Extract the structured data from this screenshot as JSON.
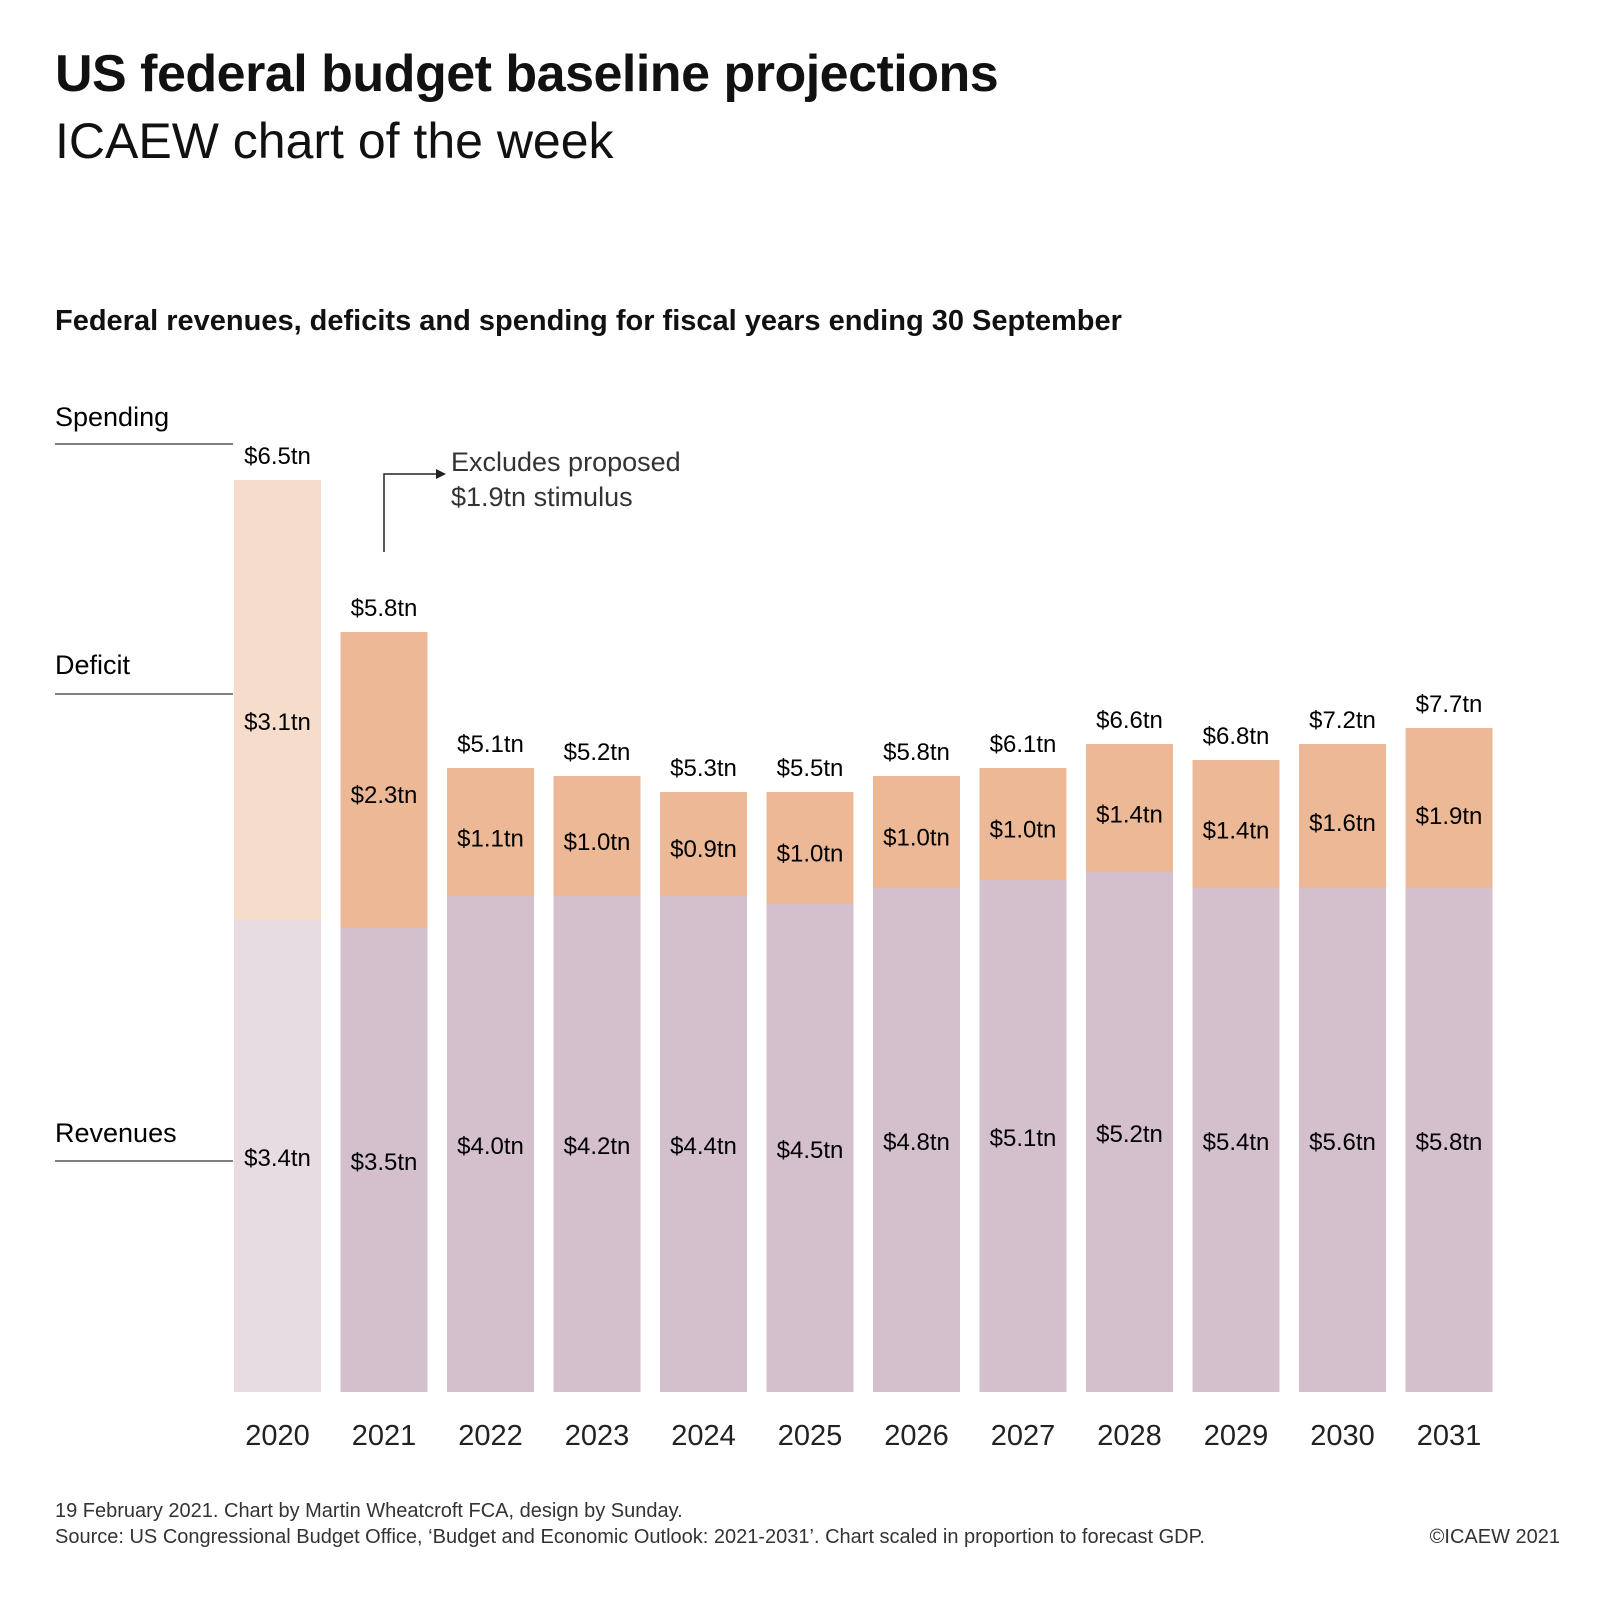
{
  "header": {
    "title": "US federal budget baseline projections",
    "subtitle": "ICAEW chart of the week"
  },
  "chart_data": {
    "type": "bar",
    "stacked": true,
    "title": "Federal revenues, deficits and spending for fiscal years ending 30 September",
    "xlabel": "",
    "ylabel": "",
    "unit": "$tn",
    "categories": [
      "2020",
      "2021",
      "2022",
      "2023",
      "2024",
      "2025",
      "2026",
      "2027",
      "2028",
      "2029",
      "2030",
      "2031"
    ],
    "series": [
      {
        "name": "Revenues",
        "values": [
          3.4,
          3.5,
          4.0,
          4.2,
          4.4,
          4.5,
          4.8,
          5.1,
          5.2,
          5.4,
          5.6,
          5.8
        ],
        "labels": [
          "$3.4tn",
          "$3.5tn",
          "$4.0tn",
          "$4.2tn",
          "$4.4tn",
          "$4.5tn",
          "$4.8tn",
          "$5.1tn",
          "$5.2tn",
          "$5.4tn",
          "$5.6tn",
          "$5.8tn"
        ]
      },
      {
        "name": "Deficit",
        "values": [
          3.1,
          2.3,
          1.1,
          1.0,
          0.9,
          1.0,
          1.0,
          1.0,
          1.4,
          1.4,
          1.6,
          1.9
        ],
        "labels": [
          "$3.1tn",
          "$2.3tn",
          "$1.1tn",
          "$1.0tn",
          "$0.9tn",
          "$1.0tn",
          "$1.0tn",
          "$1.0tn",
          "$1.4tn",
          "$1.4tn",
          "$1.6tn",
          "$1.9tn"
        ]
      }
    ],
    "totals": {
      "name": "Spending",
      "values": [
        6.5,
        5.8,
        5.1,
        5.2,
        5.3,
        5.5,
        5.8,
        6.1,
        6.6,
        6.8,
        7.2,
        7.7
      ],
      "labels": [
        "$6.5tn",
        "$5.8tn",
        "$5.1tn",
        "$5.2tn",
        "$5.3tn",
        "$5.5tn",
        "$5.8tn",
        "$6.1tn",
        "$6.6tn",
        "$6.8tn",
        "$7.2tn",
        "$7.7tn"
      ]
    },
    "scaled_heights_note": "Chart scaled in proportion to forecast GDP",
    "gdp_scaled_fraction": {
      "revenues": [
        0.59,
        0.58,
        0.62,
        0.62,
        0.62,
        0.61,
        0.63,
        0.64,
        0.65,
        0.63,
        0.63,
        0.63
      ],
      "deficit": [
        0.55,
        0.37,
        0.16,
        0.15,
        0.13,
        0.14,
        0.14,
        0.14,
        0.16,
        0.16,
        0.18,
        0.2
      ]
    },
    "series_labels": [
      "Spending",
      "Deficit",
      "Revenues"
    ],
    "colors": {
      "revenues_2020": "#e8dce3",
      "deficit_2020": "#f5dccb",
      "revenues": "#d4bfcd",
      "deficit": "#edb895",
      "text": "#111111"
    },
    "annotation": {
      "line1": "Excludes proposed",
      "line2": "$1.9tn stimulus",
      "target": "2021"
    },
    "legend": "left",
    "grid": false
  },
  "footer": {
    "line1": "19 February 2021.   Chart by Martin Wheatcroft FCA, design by Sunday.",
    "line2": "Source: US Congressional Budget Office, ‘Budget and Economic Outlook: 2021-2031’. Chart scaled in proportion to forecast GDP.",
    "copyright": "©ICAEW 2021"
  }
}
